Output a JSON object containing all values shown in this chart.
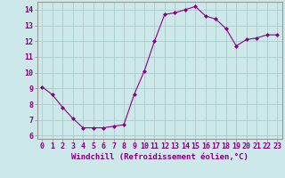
{
  "x": [
    0,
    1,
    2,
    3,
    4,
    5,
    6,
    7,
    8,
    9,
    10,
    11,
    12,
    13,
    14,
    15,
    16,
    17,
    18,
    19,
    20,
    21,
    22,
    23
  ],
  "y": [
    9.1,
    8.6,
    7.8,
    7.1,
    6.5,
    6.5,
    6.5,
    6.6,
    6.7,
    8.6,
    10.1,
    12.0,
    13.7,
    13.8,
    14.0,
    14.2,
    13.6,
    13.4,
    12.8,
    11.7,
    12.1,
    12.2,
    12.4,
    12.4
  ],
  "line_color": "#8b008b",
  "marker": "D",
  "marker_size": 2,
  "bg_color": "#cce8e8",
  "grid_color": "#aacccc",
  "xlabel": "Windchill (Refroidissement éolien,°C)",
  "xlim": [
    -0.5,
    23.5
  ],
  "ylim": [
    5.8,
    14.5
  ],
  "xticks": [
    0,
    1,
    2,
    3,
    4,
    5,
    6,
    7,
    8,
    9,
    10,
    11,
    12,
    13,
    14,
    15,
    16,
    17,
    18,
    19,
    20,
    21,
    22,
    23
  ],
  "yticks": [
    6,
    7,
    8,
    9,
    10,
    11,
    12,
    13,
    14
  ],
  "tick_color": "#800080",
  "label_fontsize": 6.5,
  "tick_fontsize": 6,
  "spine_color": "#999999"
}
